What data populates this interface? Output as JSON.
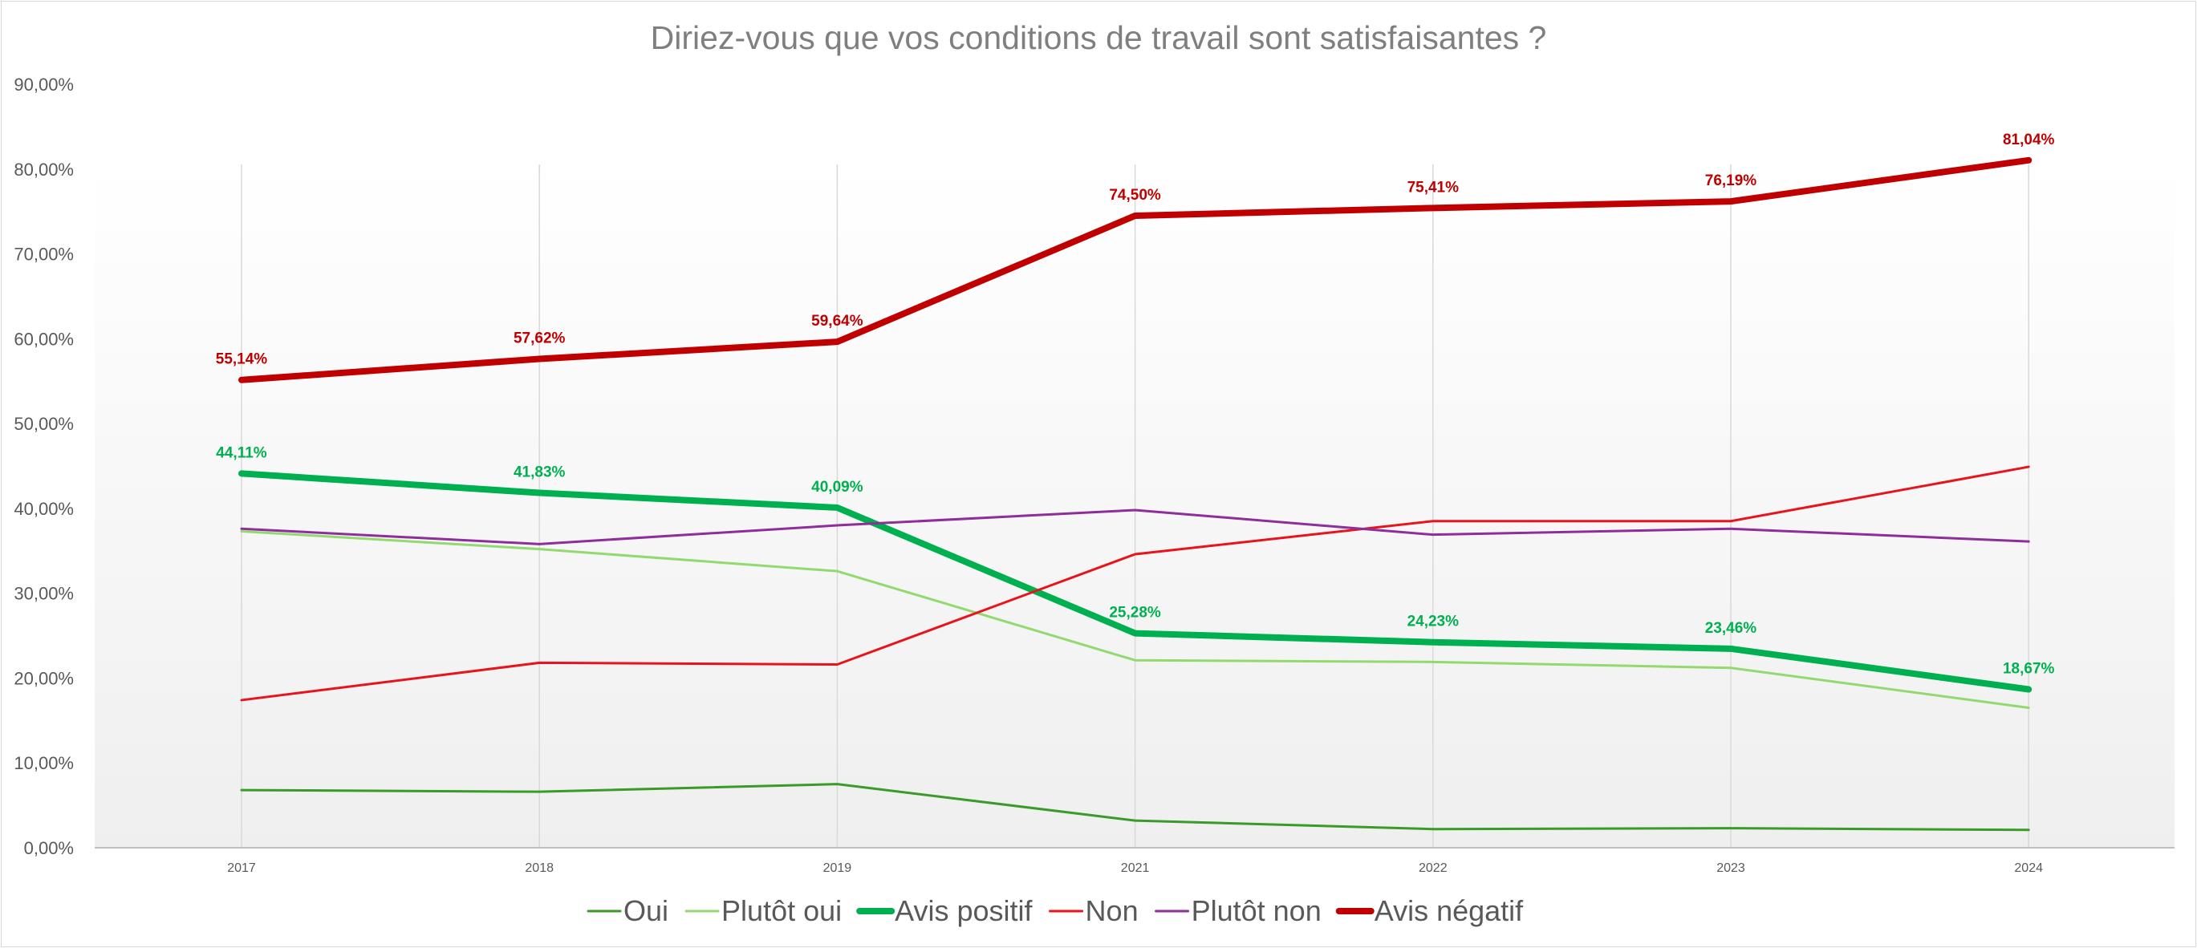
{
  "chart_data": {
    "type": "line",
    "title": "Diriez-vous que vos conditions de travail sont satisfaisantes ?",
    "xlabel": "",
    "ylabel": "",
    "categories": [
      "2017",
      "2018",
      "2019",
      "2021",
      "2022",
      "2023",
      "2024"
    ],
    "ylim": [
      0,
      90
    ],
    "yticks": [
      "0,00%",
      "10,00%",
      "20,00%",
      "30,00%",
      "40,00%",
      "50,00%",
      "60,00%",
      "70,00%",
      "80,00%",
      "90,00%"
    ],
    "grid": "vertical",
    "legend_position": "bottom",
    "series": [
      {
        "name": "Oui",
        "color": "#3a9a2a",
        "width": 3,
        "values": [
          6.8,
          6.6,
          7.5,
          3.2,
          2.2,
          2.3,
          2.1
        ],
        "labels": null
      },
      {
        "name": "Plutôt oui",
        "color": "#92d96f",
        "width": 3,
        "values": [
          37.3,
          35.2,
          32.6,
          22.1,
          21.9,
          21.2,
          16.5
        ],
        "labels": null
      },
      {
        "name": "Avis positif",
        "color": "#00b050",
        "width": 8,
        "values": [
          44.11,
          41.83,
          40.09,
          25.28,
          24.23,
          23.46,
          18.67
        ],
        "labels": [
          "44,11%",
          "41,83%",
          "40,09%",
          "25,28%",
          "24,23%",
          "23,46%",
          "18,67%"
        ]
      },
      {
        "name": "Non",
        "color": "#e8141b",
        "width": 3,
        "values": [
          17.4,
          21.8,
          21.6,
          34.6,
          38.5,
          38.5,
          44.9
        ],
        "labels": null
      },
      {
        "name": "Plutôt non",
        "color": "#8e2e9b",
        "width": 3,
        "values": [
          37.6,
          35.8,
          38.0,
          39.8,
          36.9,
          37.6,
          36.1
        ],
        "labels": null
      },
      {
        "name": "Avis négatif",
        "color": "#c00000",
        "width": 8,
        "values": [
          55.14,
          57.62,
          59.64,
          74.5,
          75.41,
          76.19,
          81.04
        ],
        "labels": [
          "55,14%",
          "57,62%",
          "59,64%",
          "74,50%",
          "75,41%",
          "76,19%",
          "81,04%"
        ]
      }
    ]
  }
}
